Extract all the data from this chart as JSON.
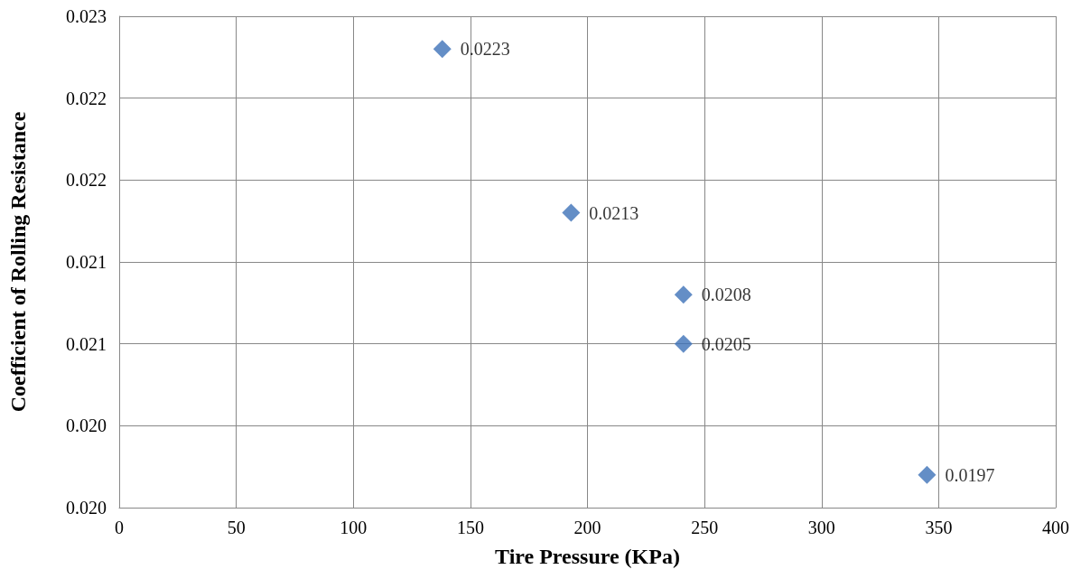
{
  "chart_data": {
    "type": "scatter",
    "xlabel": "Tire Pressure (KPa)",
    "ylabel": "Coefficient of Rolling Resistance",
    "x": [
      138,
      193,
      241,
      241,
      345
    ],
    "values": [
      0.0223,
      0.0213,
      0.0208,
      0.0205,
      0.0197
    ],
    "color": "#3d72b8",
    "marker": "diamond",
    "data_labels": true,
    "grid": true,
    "xlim": [
      0,
      400
    ],
    "xticks": [
      0,
      50,
      100,
      150,
      200,
      250,
      300,
      350,
      400
    ],
    "ylim": [
      0.0195,
      0.0225
    ],
    "yticks": [
      {
        "value": 0.0195,
        "label": "0.020"
      },
      {
        "value": 0.02,
        "label": "0.020"
      },
      {
        "value": 0.0205,
        "label": "0.021"
      },
      {
        "value": 0.021,
        "label": "0.021"
      },
      {
        "value": 0.0215,
        "label": "0.022"
      },
      {
        "value": 0.022,
        "label": "0.022"
      },
      {
        "value": 0.0225,
        "label": "0.023"
      }
    ]
  }
}
